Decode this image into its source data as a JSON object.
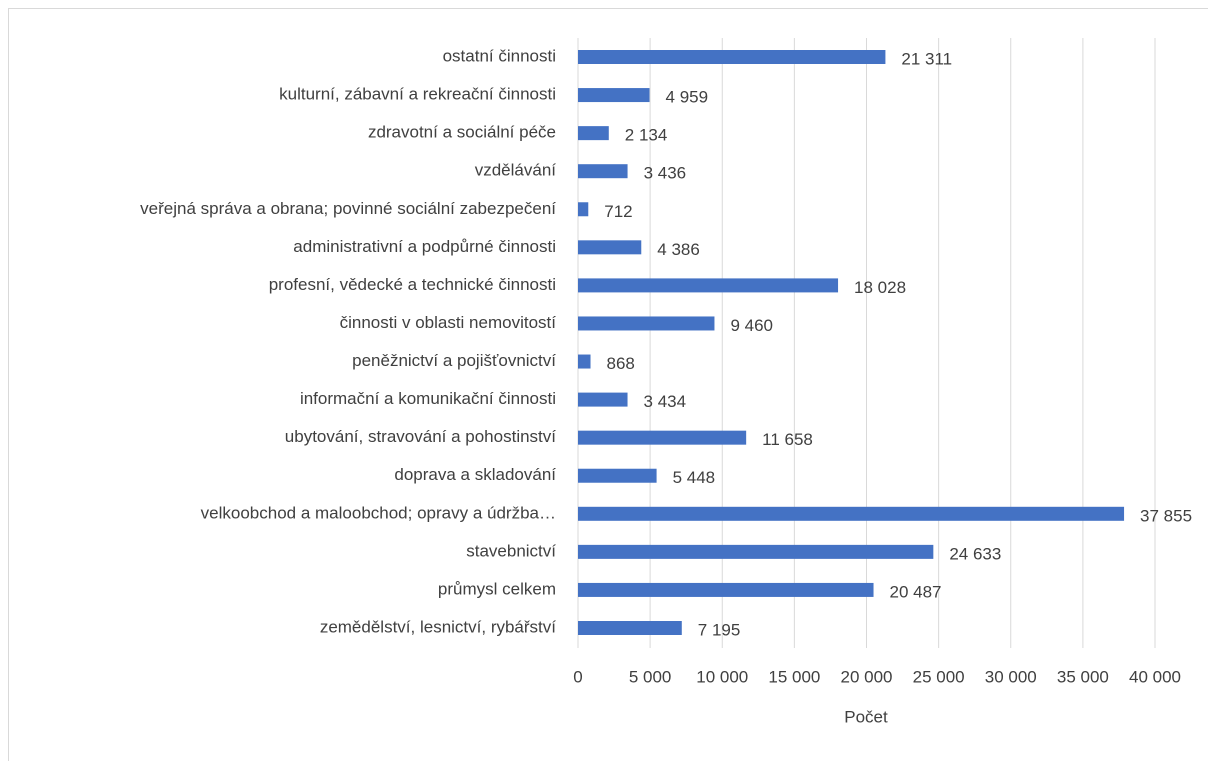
{
  "chart_data": {
    "type": "bar",
    "orientation": "horizontal",
    "x_label": "Počet",
    "categories": [
      "ostatní činnosti",
      "kulturní, zábavní a rekreační činnosti",
      "zdravotní a sociální péče",
      "vzdělávání",
      "veřejná správa a obrana; povinné sociální zabezpečení",
      "administrativní a podpůrné činnosti",
      "profesní, vědecké a technické činnosti",
      "činnosti v oblasti nemovitostí",
      "peněžnictví a pojišťovnictví",
      "informační a komunikační činnosti",
      "ubytování, stravování a pohostinství",
      "doprava a skladování",
      "velkoobchod a maloobchod; opravy a údržba…",
      "stavebnictví",
      "průmysl celkem",
      "zemědělství, lesnictví, rybářství"
    ],
    "values": [
      21311,
      4959,
      2134,
      3436,
      712,
      4386,
      18028,
      9460,
      868,
      3434,
      11658,
      5448,
      37855,
      24633,
      20487,
      7195
    ],
    "value_labels": [
      "21 311",
      "4 959",
      "2 134",
      "3 436",
      "712",
      "4 386",
      "18 028",
      "9 460",
      "868",
      "3 434",
      "11 658",
      "5 448",
      "37 855",
      "24 633",
      "20 487",
      "7 195"
    ],
    "color": "#4472c4",
    "xlim": [
      0,
      40000
    ],
    "xticks": [
      0,
      {
        "value": 5000,
        "label": "5 000"
      },
      {
        "value": 10000,
        "label": "10 000"
      },
      {
        "value": 15000,
        "label": "15 000"
      },
      {
        "value": 20000,
        "label": "20 000"
      },
      {
        "value": 25000,
        "label": "25 000"
      },
      {
        "value": 30000,
        "label": "30 000"
      },
      {
        "value": 35000,
        "label": "35 000"
      },
      {
        "value": 40000,
        "label": "40 000"
      }
    ],
    "grid": true
  }
}
